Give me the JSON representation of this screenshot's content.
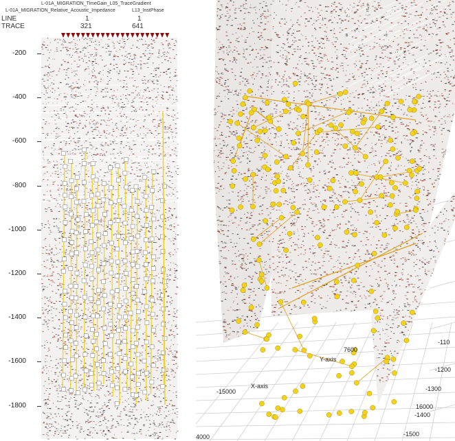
{
  "left": {
    "header": {
      "line1": "L-01A_MIGRATION_TimeGain_L05_TraceGradient",
      "line2": "L-01A_MIGRATION_Relative_Acoustic_Impedance",
      "line2b": "L13_InstPhase",
      "line_label": "LINE",
      "trace_label": "TRACE",
      "line_values": [
        "1",
        "1"
      ],
      "trace_values": [
        "321",
        "641"
      ]
    },
    "y_ticks": [
      "-200",
      "-400",
      "-600",
      "-800",
      "-1000",
      "-1200",
      "-1400",
      "-1600",
      "-1800"
    ]
  },
  "right": {
    "axis_labels": {
      "x_axis": "X-axis",
      "y_axis": "Y-axis",
      "x_val_1": "-15000",
      "x_val_2": "16000",
      "x_val_3": "7600",
      "corner": "4000",
      "z_1": "-110",
      "z_2": "-1200",
      "z_3": "-1300",
      "z_4": "16000",
      "z_5": "-1400",
      "z_6": "-1500"
    }
  },
  "colors": {
    "seismic_red": "#8b1a12",
    "seismic_dark": "#2a2a2a",
    "marker_yellow": "#f2d21a",
    "line_orange": "#e0a020",
    "square_white": "#ffffff",
    "triangle_red": "#8b0e0e"
  }
}
